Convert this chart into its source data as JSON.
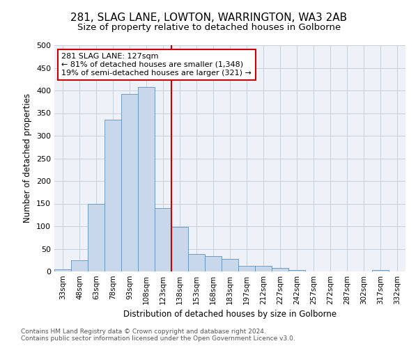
{
  "title": "281, SLAG LANE, LOWTON, WARRINGTON, WA3 2AB",
  "subtitle": "Size of property relative to detached houses in Golborne",
  "xlabel": "Distribution of detached houses by size in Golborne",
  "ylabel": "Number of detached properties",
  "footnote1": "Contains HM Land Registry data © Crown copyright and database right 2024.",
  "footnote2": "Contains public sector information licensed under the Open Government Licence v3.0.",
  "bar_labels": [
    "33sqm",
    "48sqm",
    "63sqm",
    "78sqm",
    "93sqm",
    "108sqm",
    "123sqm",
    "138sqm",
    "153sqm",
    "168sqm",
    "183sqm",
    "197sqm",
    "212sqm",
    "227sqm",
    "242sqm",
    "257sqm",
    "272sqm",
    "287sqm",
    "302sqm",
    "317sqm",
    "332sqm"
  ],
  "bar_values": [
    5,
    25,
    150,
    335,
    393,
    408,
    140,
    98,
    38,
    34,
    27,
    13,
    13,
    8,
    3,
    0,
    0,
    0,
    0,
    3,
    0
  ],
  "bar_color": "#c8d8ea",
  "bar_edge_color": "#6090b8",
  "vline_x": 6.5,
  "vline_color": "#cc0000",
  "annotation_text": "281 SLAG LANE: 127sqm\n← 81% of detached houses are smaller (1,348)\n19% of semi-detached houses are larger (321) →",
  "annotation_box_color": "#cc0000",
  "ylim": [
    0,
    500
  ],
  "yticks": [
    0,
    50,
    100,
    150,
    200,
    250,
    300,
    350,
    400,
    450,
    500
  ],
  "grid_color": "#c8d0dc",
  "bg_color": "#eef2f8",
  "title_fontsize": 11,
  "subtitle_fontsize": 9.5
}
